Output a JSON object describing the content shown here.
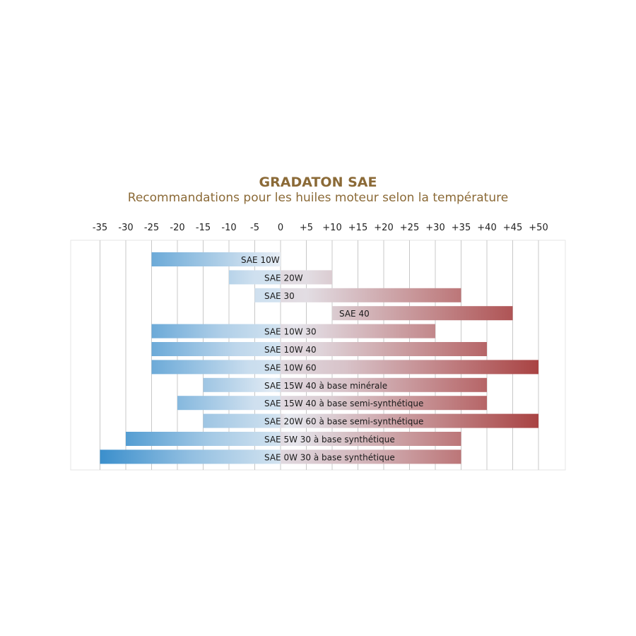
{
  "chart_data": {
    "type": "bar",
    "orientation": "horizontal-range",
    "title": "GRADATON SAE",
    "subtitle": "Recommandations pour les huiles moteur selon la température",
    "x_ticks": [
      -35,
      -30,
      -25,
      -20,
      -15,
      -10,
      -5,
      0,
      5,
      10,
      15,
      20,
      25,
      30,
      35,
      40,
      45,
      50
    ],
    "x_tick_labels": [
      "-35",
      "-30",
      "-25",
      "-20",
      "-15",
      "-10",
      "-5",
      "0",
      "+5",
      "+10",
      "+15",
      "+20",
      "+25",
      "+30",
      "+35",
      "+40",
      "+45",
      "+50"
    ],
    "xlim": [
      -35,
      50
    ],
    "grid": true,
    "colors": {
      "cold": "#3b8fcc",
      "neutral": "#e8eef5",
      "warm": "#a94343",
      "title": "#8b6a37"
    },
    "series": [
      {
        "label": "SAE 10W",
        "min": -25,
        "max": 0
      },
      {
        "label": "SAE 20W",
        "min": -10,
        "max": 10
      },
      {
        "label": "SAE 30",
        "min": -5,
        "max": 35
      },
      {
        "label": "SAE 40",
        "min": 10,
        "max": 45
      },
      {
        "label": "SAE 10W 30",
        "min": -25,
        "max": 30
      },
      {
        "label": "SAE 10W 40",
        "min": -25,
        "max": 40
      },
      {
        "label": "SAE 10W 60",
        "min": -25,
        "max": 50
      },
      {
        "label": "SAE 15W 40 à base minérale",
        "min": -15,
        "max": 40
      },
      {
        "label": "SAE 15W 40 à base semi-synthétique",
        "min": -20,
        "max": 40
      },
      {
        "label": "SAE 20W 60 à base semi-synthétique",
        "min": -15,
        "max": 50
      },
      {
        "label": "SAE 5W 30 à base synthétique",
        "min": -30,
        "max": 35
      },
      {
        "label": "SAE 0W 30 à base synthétique",
        "min": -35,
        "max": 35
      }
    ]
  }
}
